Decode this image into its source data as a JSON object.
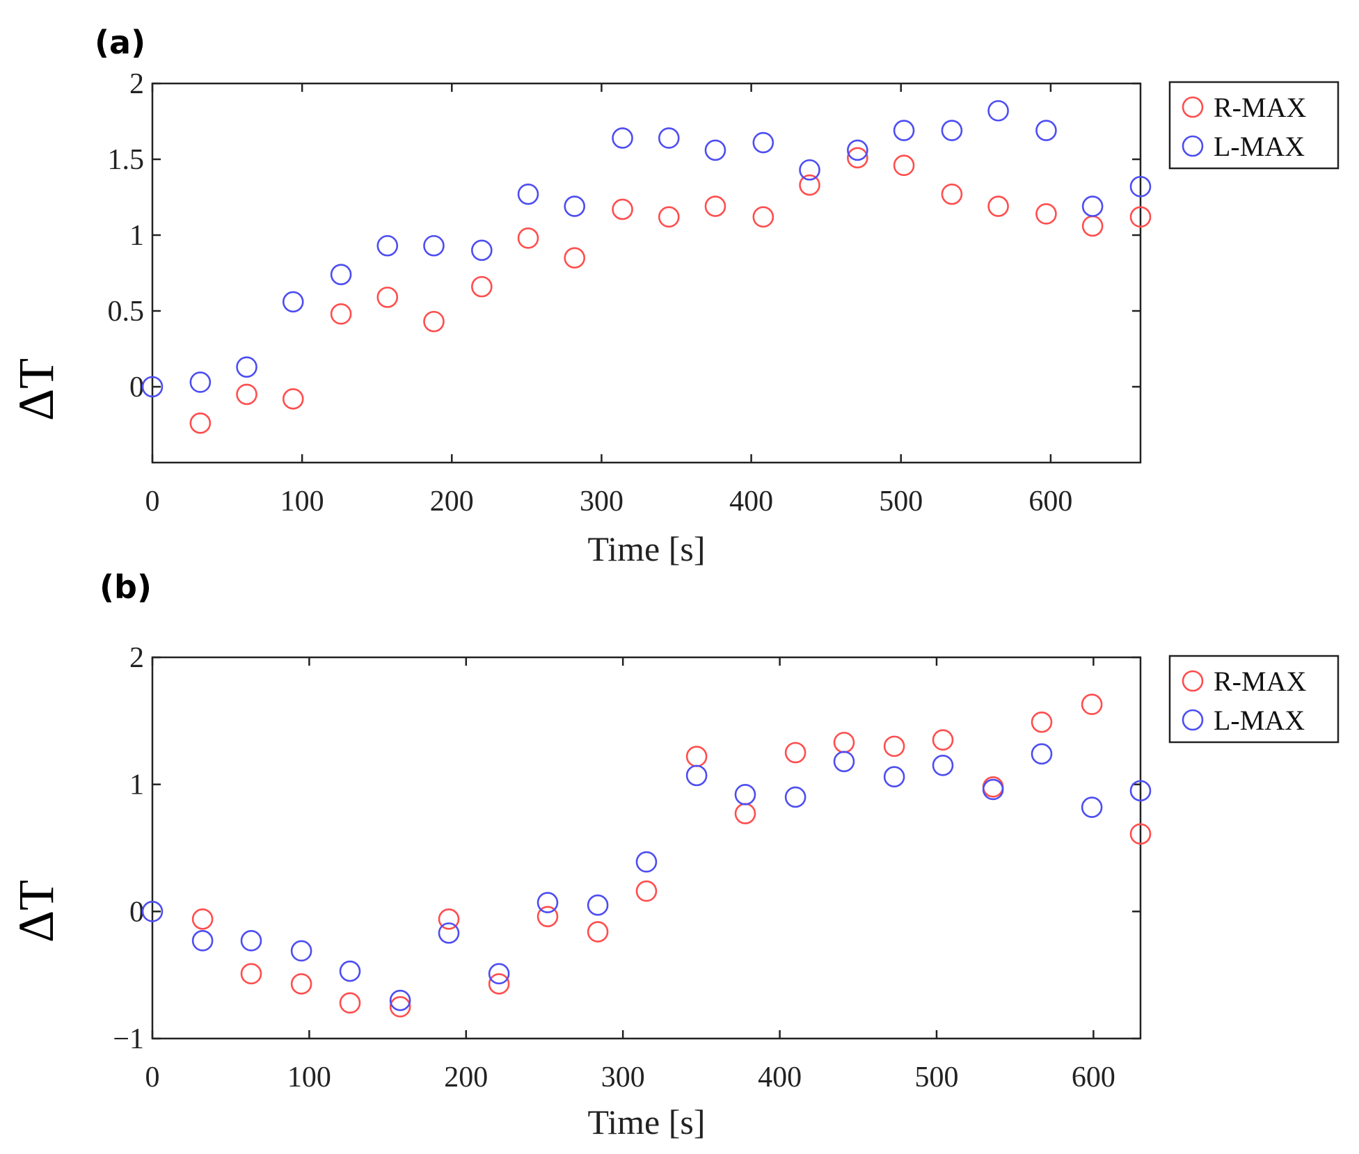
{
  "chart_data": [
    {
      "type": "scatter",
      "panel": "(a)",
      "xlabel": "Time [s]",
      "ylabel": "ΔT",
      "xlim": [
        0,
        660
      ],
      "ylim": [
        -0.5,
        2
      ],
      "xticks": [
        0,
        100,
        200,
        300,
        400,
        500,
        600
      ],
      "yticks": [
        0,
        0.5,
        1,
        1.5,
        2
      ],
      "yticklabels": [
        "0",
        "0.5",
        "1",
        "1.5",
        "2"
      ],
      "legend_position": "outside-top-right",
      "series": [
        {
          "name": "R-MAX",
          "color": "#ff4d4d",
          "x": [
            32,
            63,
            94,
            126,
            157,
            188,
            220,
            251,
            282,
            314,
            345,
            376,
            408,
            439,
            471,
            502,
            534,
            565,
            597,
            628,
            660
          ],
          "y": [
            -0.24,
            -0.05,
            -0.08,
            0.48,
            0.59,
            0.43,
            0.66,
            0.98,
            0.85,
            1.17,
            1.12,
            1.19,
            1.12,
            1.33,
            1.51,
            1.46,
            1.27,
            1.19,
            1.14,
            1.06,
            1.12
          ]
        },
        {
          "name": "L-MAX",
          "color": "#4d4df2",
          "x": [
            0,
            32,
            63,
            94,
            126,
            157,
            188,
            220,
            251,
            282,
            314,
            345,
            376,
            408,
            439,
            471,
            502,
            534,
            565,
            597,
            628,
            660
          ],
          "y": [
            0,
            0.03,
            0.13,
            0.56,
            0.74,
            0.93,
            0.93,
            0.9,
            1.27,
            1.19,
            1.64,
            1.64,
            1.56,
            1.61,
            1.43,
            1.56,
            1.69,
            1.69,
            1.82,
            1.69,
            1.19,
            1.32
          ]
        }
      ]
    },
    {
      "type": "scatter",
      "panel": "(b)",
      "xlabel": "Time [s]",
      "ylabel": "ΔT",
      "xlim": [
        0,
        630
      ],
      "ylim": [
        -1,
        2
      ],
      "xticks": [
        0,
        100,
        200,
        300,
        400,
        500,
        600
      ],
      "yticks": [
        -1,
        0,
        1,
        2
      ],
      "yticklabels": [
        "−1",
        "0",
        "1",
        "2"
      ],
      "legend_position": "outside-top-right",
      "series": [
        {
          "name": "R-MAX",
          "color": "#ff4d4d",
          "x": [
            32,
            63,
            95,
            126,
            158,
            189,
            221,
            252,
            284,
            315,
            347,
            378,
            410,
            441,
            473,
            504,
            536,
            567,
            599,
            630
          ],
          "y": [
            -0.06,
            -0.49,
            -0.57,
            -0.72,
            -0.75,
            -0.06,
            -0.57,
            -0.04,
            -0.16,
            0.16,
            1.22,
            0.77,
            1.25,
            1.33,
            1.3,
            1.35,
            0.98,
            1.49,
            1.63,
            0.61
          ]
        },
        {
          "name": "L-MAX",
          "color": "#4d4df2",
          "x": [
            0,
            32,
            63,
            95,
            126,
            158,
            189,
            221,
            252,
            284,
            315,
            347,
            378,
            410,
            441,
            473,
            504,
            536,
            567,
            599,
            630
          ],
          "y": [
            0,
            -0.23,
            -0.23,
            -0.31,
            -0.47,
            -0.7,
            -0.17,
            -0.49,
            0.07,
            0.05,
            0.39,
            1.07,
            0.92,
            0.9,
            1.18,
            1.06,
            1.15,
            0.96,
            1.24,
            0.82,
            0.95
          ]
        }
      ]
    }
  ]
}
